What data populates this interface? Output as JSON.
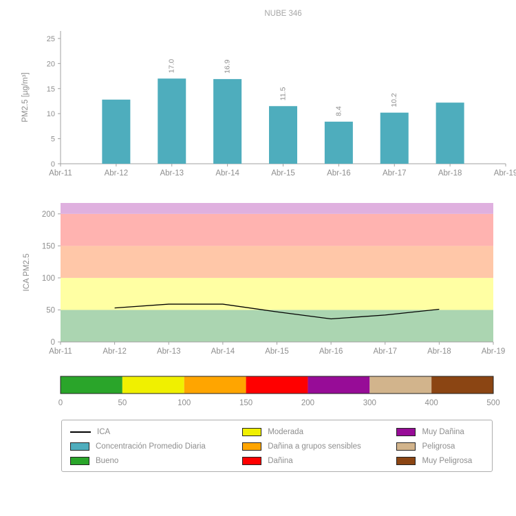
{
  "colors": {
    "title_text": "#a6a6a6",
    "tick_text": "#8e8e8e",
    "axis": "#a0a0a0",
    "bar": "#4eadbd",
    "line": "#000000"
  },
  "chart_data": [
    {
      "type": "bar",
      "title": "NUBE 346",
      "ylabel": "PM2.5 [µg/m³]",
      "categories": [
        "Abr-11",
        "Abr-12",
        "Abr-13",
        "Abr-14",
        "Abr-15",
        "Abr-16",
        "Abr-17",
        "Abr-18",
        "Abr-19"
      ],
      "values": [
        null,
        12.8,
        17.0,
        16.9,
        11.5,
        8.4,
        10.2,
        12.2,
        null
      ],
      "bar_labels": [
        "",
        "",
        "17.0",
        "16.9",
        "11.5",
        "8.4",
        "10.2",
        "",
        ""
      ],
      "yticks": [
        0,
        5,
        10,
        15,
        20,
        25
      ],
      "ylim": [
        0,
        26.5
      ],
      "bar_color": "#4eadbd",
      "grid": false,
      "legend_position": "none"
    },
    {
      "type": "line",
      "series_name": "ICA",
      "ylabel": "ICA PM2.5",
      "categories": [
        "Abr-11",
        "Abr-12",
        "Abr-13",
        "Abr-14",
        "Abr-15",
        "Abr-16",
        "Abr-17",
        "Abr-18",
        "Abr-19"
      ],
      "values": [
        null,
        53,
        59,
        59,
        47,
        36,
        42,
        51,
        null
      ],
      "yticks": [
        0,
        50,
        100,
        150,
        200
      ],
      "ylim": [
        0,
        217
      ],
      "line_color": "#000000",
      "bands": [
        {
          "label": "Bueno",
          "from": 0,
          "to": 50,
          "color": "#abd5b1"
        },
        {
          "label": "Moderada",
          "from": 50,
          "to": 100,
          "color": "#ffffa3"
        },
        {
          "label": "Dañina a grupos sensibles",
          "from": 100,
          "to": 150,
          "color": "#ffc7a8"
        },
        {
          "label": "Dañina",
          "from": 150,
          "to": 200,
          "color": "#ffb3b0"
        },
        {
          "label": "Muy Dañina",
          "from": 200,
          "to": 217,
          "color": "#dfb0df"
        }
      ]
    },
    {
      "type": "colorbar",
      "ticks": [
        0,
        50,
        100,
        150,
        200,
        300,
        400,
        500
      ],
      "segments": [
        {
          "label": "Bueno",
          "color": "#2aa52a"
        },
        {
          "label": "Moderada",
          "color": "#f0f000"
        },
        {
          "label": "Dañina a grupos sensibles",
          "color": "#ffa500"
        },
        {
          "label": "Dañina",
          "color": "#ff0000"
        },
        {
          "label": "Muy Dañina",
          "color": "#970c97"
        },
        {
          "label": "Peligrosa",
          "color": "#d2b48c"
        },
        {
          "label": "Muy Peligrosa",
          "color": "#8b4513"
        }
      ]
    }
  ],
  "legend": {
    "columns": [
      [
        {
          "label": "ICA",
          "swatch": "line"
        },
        {
          "label": "Concentración Promedio Diaria",
          "swatch": "#4eadbd"
        },
        {
          "label": "Bueno",
          "swatch": "#2aa52a"
        }
      ],
      [
        {
          "label": "Moderada",
          "swatch": "#f0f000"
        },
        {
          "label": "Dañina a grupos sensibles",
          "swatch": "#ffa500"
        },
        {
          "label": "Dañina",
          "swatch": "#ff0000"
        }
      ],
      [
        {
          "label": "Muy Dañina",
          "swatch": "#970c97"
        },
        {
          "label": "Peligrosa",
          "swatch": "#d2b48c"
        },
        {
          "label": "Muy Peligrosa",
          "swatch": "#8b4513"
        }
      ]
    ]
  }
}
